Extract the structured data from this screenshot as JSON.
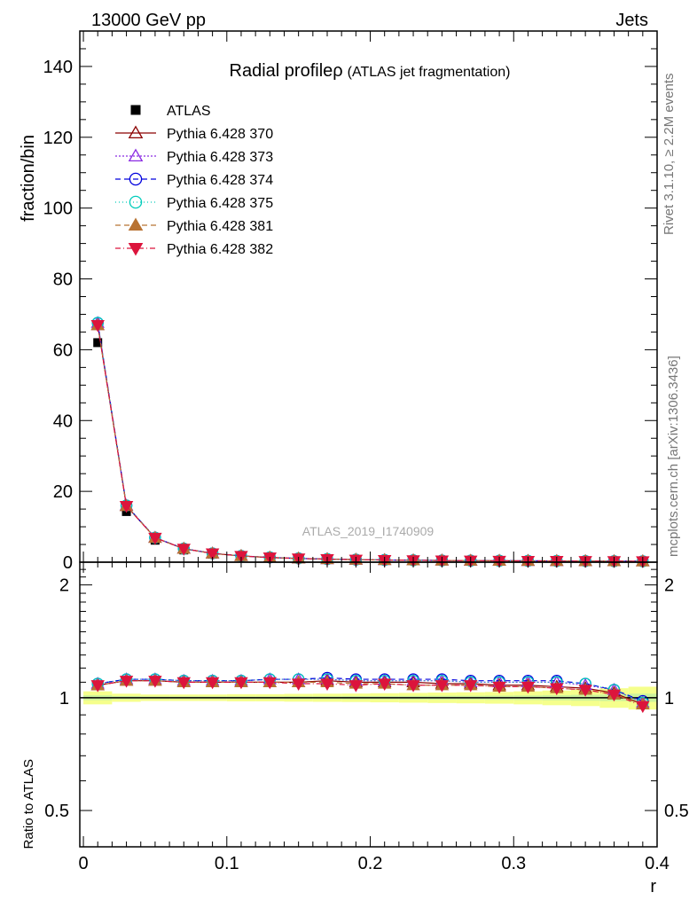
{
  "header": {
    "left": "13000 GeV pp",
    "right": "Jets"
  },
  "side": {
    "rivet": "Rivet 3.1.10, ≥ 2.2M events",
    "mcplots": "mcplots.cern.ch [arXiv:1306.3436]"
  },
  "chart_data": {
    "type": "scatter",
    "title_main": "Radial profile",
    "title_symbol": "ρ",
    "title_paren": "(ATLAS jet fragmentation)",
    "analysis": "ATLAS_2019_I1740909",
    "ylabel": "fraction/bin",
    "xlabel": "r",
    "ratio_ylabel": "Ratio to ATLAS",
    "xlim": [
      -0.0025,
      0.4
    ],
    "ylim": [
      0,
      150
    ],
    "ratio_ylim": [
      0.4,
      2.3
    ],
    "ratio_log": true,
    "x_ticks": [
      0,
      0.1,
      0.2,
      0.3,
      0.4
    ],
    "x_tick_labels": [
      "0",
      "0.1",
      "0.2",
      "0.3",
      "0.4"
    ],
    "y_ticks": [
      0,
      20,
      40,
      60,
      80,
      100,
      120,
      140
    ],
    "y_tick_labels": [
      "0",
      "20",
      "40",
      "60",
      "80",
      "100",
      "120",
      "140"
    ],
    "ratio_ticks": [
      0.5,
      1,
      2
    ],
    "ratio_tick_labels": [
      "0.5",
      "1",
      "2"
    ],
    "legend_position": "top-left",
    "x": [
      0.01,
      0.03,
      0.05,
      0.07,
      0.09,
      0.11,
      0.13,
      0.15,
      0.17,
      0.19,
      0.21,
      0.23,
      0.25,
      0.27,
      0.29,
      0.31,
      0.33,
      0.35,
      0.37,
      0.39
    ],
    "data": {
      "name": "ATLAS",
      "values": [
        62.0,
        14.3,
        6.2,
        3.45,
        2.25,
        1.6,
        1.2,
        0.95,
        0.78,
        0.65,
        0.56,
        0.49,
        0.44,
        0.4,
        0.37,
        0.34,
        0.32,
        0.3,
        0.28,
        0.27
      ],
      "band_inner": [
        0.015,
        0.01,
        0.008,
        0.008,
        0.008,
        0.008,
        0.008,
        0.009,
        0.009,
        0.01,
        0.01,
        0.011,
        0.012,
        0.012,
        0.013,
        0.014,
        0.016,
        0.018,
        0.02,
        0.025
      ],
      "band_outer": [
        0.04,
        0.025,
        0.02,
        0.02,
        0.02,
        0.022,
        0.022,
        0.024,
        0.025,
        0.026,
        0.028,
        0.03,
        0.032,
        0.034,
        0.036,
        0.04,
        0.045,
        0.05,
        0.06,
        0.07
      ]
    },
    "series": [
      {
        "name": "Pythia 6.428 370",
        "color": "#8b0000",
        "marker": "triangle-up-open",
        "dash": "",
        "ratio": [
          1.08,
          1.11,
          1.11,
          1.1,
          1.1,
          1.1,
          1.1,
          1.1,
          1.11,
          1.1,
          1.1,
          1.1,
          1.09,
          1.09,
          1.08,
          1.08,
          1.07,
          1.06,
          1.03,
          0.96
        ]
      },
      {
        "name": "Pythia 6.428 373",
        "color": "#8a2be2",
        "marker": "triangle-up-open",
        "dash": "2,2",
        "ratio": [
          1.09,
          1.12,
          1.12,
          1.11,
          1.11,
          1.11,
          1.12,
          1.12,
          1.12,
          1.11,
          1.11,
          1.11,
          1.11,
          1.1,
          1.1,
          1.1,
          1.1,
          1.08,
          1.05,
          0.97
        ]
      },
      {
        "name": "Pythia 6.428 374",
        "color": "#0000dd",
        "marker": "circle-open",
        "dash": "6,4",
        "ratio": [
          1.09,
          1.12,
          1.12,
          1.11,
          1.11,
          1.11,
          1.12,
          1.12,
          1.13,
          1.12,
          1.12,
          1.12,
          1.12,
          1.11,
          1.11,
          1.11,
          1.11,
          1.09,
          1.05,
          0.98
        ]
      },
      {
        "name": "Pythia 6.428 375",
        "color": "#00ccbb",
        "marker": "circle-open",
        "dash": "1,3",
        "ratio": [
          1.09,
          1.12,
          1.12,
          1.11,
          1.11,
          1.11,
          1.12,
          1.12,
          1.12,
          1.11,
          1.11,
          1.11,
          1.11,
          1.1,
          1.1,
          1.1,
          1.1,
          1.09,
          1.05,
          0.97
        ]
      },
      {
        "name": "Pythia 6.428 381",
        "color": "#b87333",
        "marker": "triangle-up-filled",
        "dash": "6,4",
        "ratio": [
          1.08,
          1.11,
          1.11,
          1.1,
          1.1,
          1.1,
          1.1,
          1.1,
          1.1,
          1.09,
          1.09,
          1.08,
          1.08,
          1.08,
          1.07,
          1.07,
          1.06,
          1.05,
          1.02,
          0.96
        ]
      },
      {
        "name": "Pythia 6.428 382",
        "color": "#dc143c",
        "marker": "triangle-down-filled",
        "dash": "6,3,1,3",
        "ratio": [
          1.08,
          1.11,
          1.11,
          1.1,
          1.1,
          1.1,
          1.1,
          1.09,
          1.09,
          1.08,
          1.09,
          1.08,
          1.08,
          1.08,
          1.07,
          1.07,
          1.06,
          1.05,
          1.02,
          0.95
        ]
      }
    ]
  }
}
